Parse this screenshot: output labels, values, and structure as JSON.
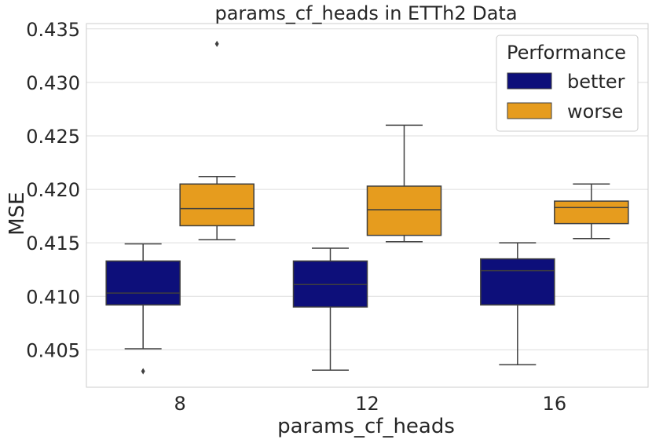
{
  "chart_data": {
    "type": "boxplot",
    "title": "params_cf_heads in ETTh2 Data",
    "xlabel": "params_cf_heads",
    "ylabel": "MSE",
    "categories": [
      "8",
      "12",
      "16"
    ],
    "ylim": [
      0.4015,
      0.4355
    ],
    "yticks": [
      0.405,
      0.41,
      0.415,
      0.42,
      0.425,
      0.43,
      0.435
    ],
    "ytick_labels": [
      "0.405",
      "0.410",
      "0.415",
      "0.420",
      "0.425",
      "0.430",
      "0.435"
    ],
    "grid": true,
    "legend": {
      "title": "Performance",
      "placement": "top-right",
      "entries": [
        "better",
        "worse"
      ]
    },
    "series": [
      {
        "name": "better",
        "color": "#0d0f7a",
        "boxes": [
          {
            "whislo": 0.4051,
            "q1": 0.4092,
            "med": 0.4103,
            "q3": 0.4133,
            "whishi": 0.4149,
            "fliers": [
              0.403
            ]
          },
          {
            "whislo": 0.4031,
            "q1": 0.409,
            "med": 0.4111,
            "q3": 0.4133,
            "whishi": 0.4145,
            "fliers": []
          },
          {
            "whislo": 0.4036,
            "q1": 0.4092,
            "med": 0.4124,
            "q3": 0.4135,
            "whishi": 0.415,
            "fliers": []
          }
        ]
      },
      {
        "name": "worse",
        "color": "#e69c1e",
        "boxes": [
          {
            "whislo": 0.4153,
            "q1": 0.4166,
            "med": 0.4182,
            "q3": 0.4205,
            "whishi": 0.4212,
            "fliers": [
              0.4336
            ]
          },
          {
            "whislo": 0.4151,
            "q1": 0.4157,
            "med": 0.4181,
            "q3": 0.4203,
            "whishi": 0.426,
            "fliers": []
          },
          {
            "whislo": 0.4154,
            "q1": 0.4168,
            "med": 0.4183,
            "q3": 0.4189,
            "whishi": 0.4205,
            "fliers": []
          }
        ]
      }
    ]
  }
}
